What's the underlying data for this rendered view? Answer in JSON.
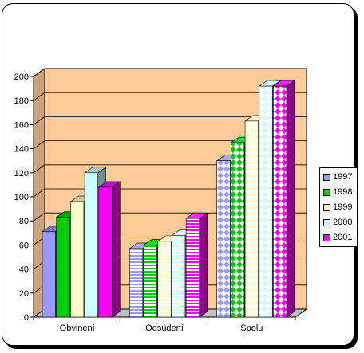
{
  "chart_data": {
    "type": "bar",
    "categories": [
      "Obvinení",
      "Odsúdení",
      "Spolu"
    ],
    "series": [
      {
        "name": "1997",
        "values": [
          71,
          57,
          130
        ],
        "color": "#9999ff"
      },
      {
        "name": "1998",
        "values": [
          83,
          60,
          145
        ],
        "color": "#00cc00"
      },
      {
        "name": "1999",
        "values": [
          96,
          63,
          163
        ],
        "color": "#ffffcc"
      },
      {
        "name": "2000",
        "values": [
          120,
          68,
          192
        ],
        "color": "#ccffff"
      },
      {
        "name": "2001",
        "values": [
          108,
          82,
          192
        ],
        "color": "#ff00ff"
      }
    ],
    "ylim": [
      0,
      200
    ],
    "yticks": [
      "0",
      "20",
      "40",
      "60",
      "80",
      "100",
      "120",
      "140",
      "160",
      "180",
      "200"
    ],
    "grid": true,
    "legend": "right",
    "wall_color": "#ffcc99"
  }
}
